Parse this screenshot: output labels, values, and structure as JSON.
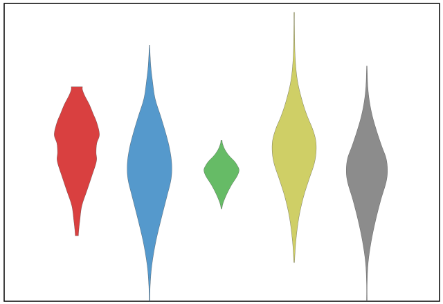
{
  "chart_data": {
    "type": "violin",
    "title": "",
    "xlabel": "",
    "ylabel": "",
    "ylim": [
      0,
      100
    ],
    "grid": false,
    "legend": "none",
    "axes_frame": true,
    "series": [
      {
        "color": "#d94040",
        "profile": [
          [
            22,
            0.05
          ],
          [
            22.5,
            0.05
          ],
          [
            24,
            0.06
          ],
          [
            27,
            0.09
          ],
          [
            32,
            0.15
          ],
          [
            37,
            0.3
          ],
          [
            42,
            0.45
          ],
          [
            47,
            0.59
          ],
          [
            50,
            0.58
          ],
          [
            53,
            0.6
          ],
          [
            56,
            0.68
          ],
          [
            60,
            0.6
          ],
          [
            63,
            0.49
          ],
          [
            66,
            0.38
          ],
          [
            69,
            0.24
          ],
          [
            71,
            0.17
          ],
          [
            72,
            0.17
          ]
        ]
      },
      {
        "color": "#5599cc",
        "profile": [
          [
            0,
            0.01
          ],
          [
            5,
            0.02
          ],
          [
            12,
            0.07
          ],
          [
            20,
            0.19
          ],
          [
            28,
            0.36
          ],
          [
            35,
            0.52
          ],
          [
            41,
            0.65
          ],
          [
            46,
            0.67
          ],
          [
            51,
            0.61
          ],
          [
            56,
            0.5
          ],
          [
            62,
            0.34
          ],
          [
            68,
            0.17
          ],
          [
            74,
            0.09
          ],
          [
            79,
            0.04
          ],
          [
            85,
            0.01
          ],
          [
            86,
            0.01
          ]
        ]
      },
      {
        "color": "#66bb66",
        "profile": [
          [
            31,
            0.01
          ],
          [
            33,
            0.05
          ],
          [
            36,
            0.16
          ],
          [
            39,
            0.3
          ],
          [
            42,
            0.47
          ],
          [
            44,
            0.53
          ],
          [
            45.5,
            0.48
          ],
          [
            47,
            0.39
          ],
          [
            49,
            0.22
          ],
          [
            51,
            0.1
          ],
          [
            53,
            0.03
          ],
          [
            54,
            0.02
          ]
        ]
      },
      {
        "color": "#cfcf66",
        "profile": [
          [
            13,
            0.01
          ],
          [
            20,
            0.05
          ],
          [
            28,
            0.14
          ],
          [
            35,
            0.28
          ],
          [
            41,
            0.45
          ],
          [
            46,
            0.6
          ],
          [
            50,
            0.66
          ],
          [
            54,
            0.65
          ],
          [
            58,
            0.55
          ],
          [
            62,
            0.4
          ],
          [
            67,
            0.25
          ],
          [
            74,
            0.1
          ],
          [
            82,
            0.03
          ],
          [
            92,
            0.01
          ],
          [
            97,
            0.01
          ]
        ]
      },
      {
        "color": "#8c8c8c",
        "profile": [
          [
            0,
            0.01
          ],
          [
            6,
            0.01
          ],
          [
            13,
            0.04
          ],
          [
            20,
            0.13
          ],
          [
            27,
            0.26
          ],
          [
            34,
            0.42
          ],
          [
            40,
            0.58
          ],
          [
            44,
            0.62
          ],
          [
            48,
            0.58
          ],
          [
            52,
            0.45
          ],
          [
            57,
            0.3
          ],
          [
            62,
            0.17
          ],
          [
            67,
            0.08
          ],
          [
            72,
            0.03
          ],
          [
            78,
            0.01
          ],
          [
            79,
            0.01
          ]
        ]
      }
    ]
  }
}
